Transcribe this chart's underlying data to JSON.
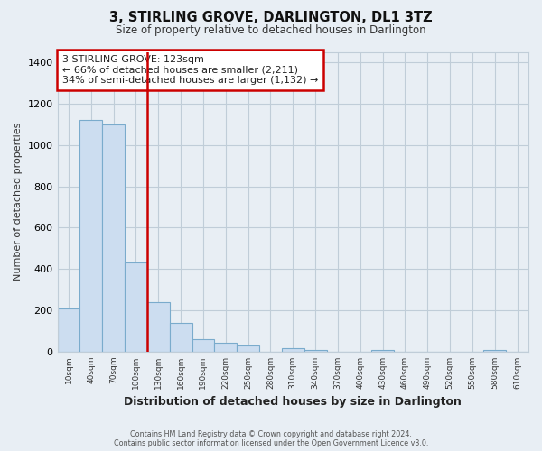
{
  "title": "3, STIRLING GROVE, DARLINGTON, DL1 3TZ",
  "subtitle": "Size of property relative to detached houses in Darlington",
  "xlabel": "Distribution of detached houses by size in Darlington",
  "ylabel": "Number of detached properties",
  "bar_labels": [
    "10sqm",
    "40sqm",
    "70sqm",
    "100sqm",
    "130sqm",
    "160sqm",
    "190sqm",
    "220sqm",
    "250sqm",
    "280sqm",
    "310sqm",
    "340sqm",
    "370sqm",
    "400sqm",
    "430sqm",
    "460sqm",
    "490sqm",
    "520sqm",
    "550sqm",
    "580sqm",
    "610sqm"
  ],
  "bar_values": [
    210,
    1120,
    1100,
    430,
    240,
    140,
    60,
    45,
    30,
    0,
    18,
    10,
    0,
    0,
    8,
    0,
    0,
    0,
    0,
    10,
    0
  ],
  "bar_color": "#ccddf0",
  "bar_edge_color": "#7aabcc",
  "highlight_color": "#cc0000",
  "red_line_after_index": 3,
  "annotation_title": "3 STIRLING GROVE: 123sqm",
  "annotation_line1": "← 66% of detached houses are smaller (2,211)",
  "annotation_line2": "34% of semi-detached houses are larger (1,132) →",
  "annotation_box_edge_color": "#cc0000",
  "ylim": [
    0,
    1450
  ],
  "yticks": [
    0,
    200,
    400,
    600,
    800,
    1000,
    1200,
    1400
  ],
  "footer_line1": "Contains HM Land Registry data © Crown copyright and database right 2024.",
  "footer_line2": "Contains public sector information licensed under the Open Government Licence v3.0.",
  "bg_color": "#e8eef4",
  "plot_bg_color": "#e8eef4",
  "grid_color": "#c0cdd8"
}
